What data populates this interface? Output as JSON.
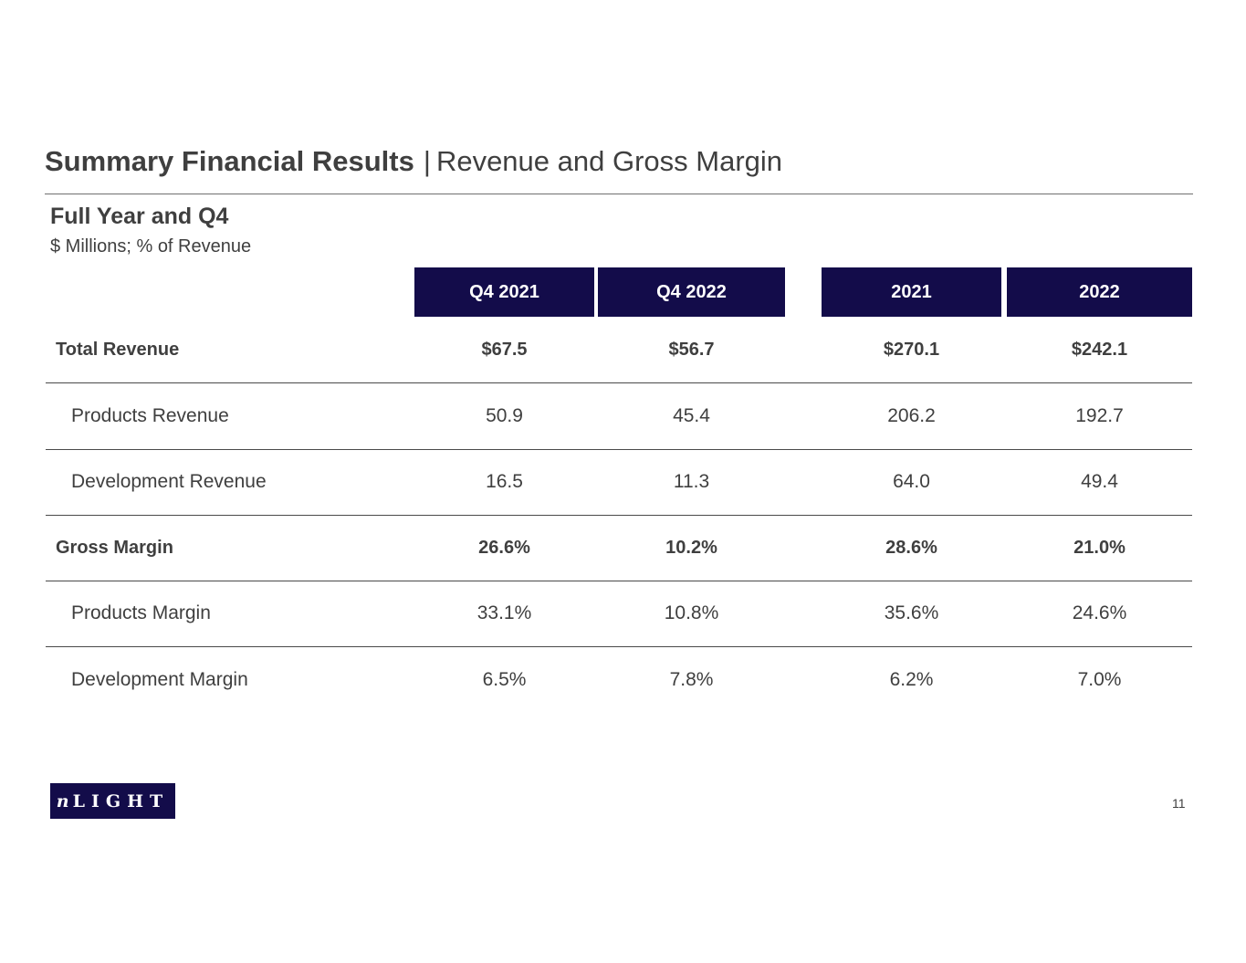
{
  "slide": {
    "title_bold": "Summary Financial Results",
    "title_separator": "|",
    "title_rest": "Revenue and Gross Margin",
    "subtitle": "Full Year and Q4",
    "units_note": "$ Millions;  % of Revenue",
    "page_number": "11"
  },
  "logo": {
    "text_n": "n",
    "text_rest": "LIGHT"
  },
  "table": {
    "columns": [
      "Q4 2021",
      "Q4 2022",
      "2021",
      "2022"
    ],
    "rows": [
      {
        "label": "Total Revenue",
        "values": [
          "$67.5",
          "$56.7",
          "$270.1",
          "$242.1"
        ]
      },
      {
        "label": "Products Revenue",
        "values": [
          "50.9",
          "45.4",
          "206.2",
          "192.7"
        ]
      },
      {
        "label": "Development  Revenue",
        "values": [
          "16.5",
          "11.3",
          "64.0",
          "49.4"
        ]
      },
      {
        "label": "Gross Margin",
        "values": [
          "26.6%",
          "10.2%",
          "28.6%",
          "21.0%"
        ]
      },
      {
        "label": "Products Margin",
        "values": [
          "33.1%",
          "10.8%",
          "35.6%",
          "24.6%"
        ]
      },
      {
        "label": "Development  Margin",
        "values": [
          "6.5%",
          "7.8%",
          "6.2%",
          "7.0%"
        ]
      }
    ]
  },
  "colors": {
    "header_bg": "#130c4a",
    "text": "#3f3f3f"
  }
}
